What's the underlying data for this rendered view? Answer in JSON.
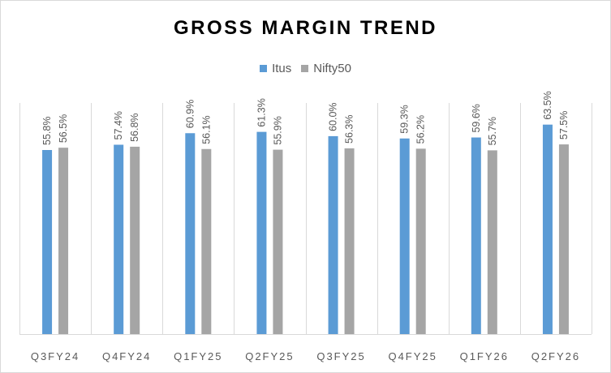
{
  "chart_data": {
    "type": "bar",
    "title": "GROSS MARGIN TREND",
    "categories": [
      "Q3FY24",
      "Q4FY24",
      "Q1FY25",
      "Q2FY25",
      "Q3FY25",
      "Q4FY25",
      "Q1FY26",
      "Q2FY26"
    ],
    "series": [
      {
        "name": "Itus",
        "color": "#5B9BD5",
        "values": [
          55.8,
          57.4,
          60.9,
          61.3,
          60.0,
          59.3,
          59.6,
          63.5
        ],
        "labels": [
          "55.8%",
          "57.4%",
          "60.9%",
          "61.3%",
          "60.0%",
          "59.3%",
          "59.6%",
          "63.5%"
        ]
      },
      {
        "name": "Nifty50",
        "color": "#A5A5A5",
        "values": [
          56.5,
          56.8,
          56.1,
          55.9,
          56.3,
          56.2,
          55.7,
          57.5
        ],
        "labels": [
          "56.5%",
          "56.8%",
          "56.1%",
          "55.9%",
          "56.3%",
          "56.2%",
          "55.7%",
          "57.5%"
        ]
      }
    ],
    "xlabel": "",
    "ylabel": "",
    "grid": "vertical category separators",
    "legend": "top-center"
  }
}
